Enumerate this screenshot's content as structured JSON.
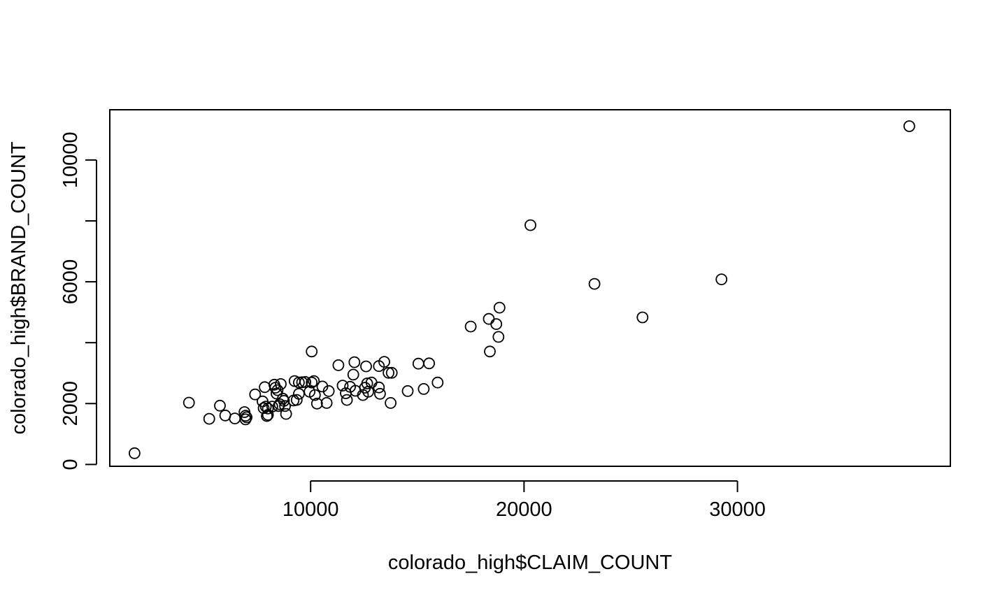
{
  "chart_data": {
    "type": "scatter",
    "title": "",
    "xlabel": "colorado_high$CLAIM_COUNT",
    "ylabel": "colorado_high$BRAND_COUNT",
    "xlim": [
      590,
      39975
    ],
    "ylim": [
      -60,
      11650
    ],
    "xticks": [
      10000,
      20000,
      30000
    ],
    "xtick_labels": [
      "10000",
      "20000",
      "30000"
    ],
    "yticks": [
      0,
      2000,
      4000,
      6000,
      8000,
      10000
    ],
    "ytick_labels": [
      "0",
      "2000",
      "",
      "6000",
      "",
      "10000"
    ],
    "grid": false,
    "legend": "none",
    "marker": "open-circle",
    "color": "#000000",
    "points": [
      [
        1750,
        370
      ],
      [
        4300,
        2030
      ],
      [
        5250,
        1500
      ],
      [
        5750,
        1930
      ],
      [
        6000,
        1610
      ],
      [
        6450,
        1510
      ],
      [
        6900,
        1720
      ],
      [
        6950,
        1600
      ],
      [
        6950,
        1480
      ],
      [
        7000,
        1550
      ],
      [
        7400,
        2300
      ],
      [
        7750,
        2070
      ],
      [
        7800,
        1850
      ],
      [
        7850,
        2540
      ],
      [
        7900,
        1900
      ],
      [
        7950,
        1590
      ],
      [
        8000,
        1630
      ],
      [
        8000,
        1840
      ],
      [
        8200,
        1900
      ],
      [
        8300,
        2620
      ],
      [
        8350,
        2520
      ],
      [
        8400,
        2330
      ],
      [
        8450,
        2440
      ],
      [
        8500,
        1920
      ],
      [
        8550,
        1980
      ],
      [
        8600,
        2640
      ],
      [
        8700,
        2160
      ],
      [
        8750,
        2090
      ],
      [
        8800,
        1920
      ],
      [
        8850,
        1660
      ],
      [
        9200,
        2100
      ],
      [
        9250,
        2740
      ],
      [
        9350,
        2120
      ],
      [
        9450,
        2690
      ],
      [
        9450,
        2320
      ],
      [
        9600,
        2700
      ],
      [
        9750,
        2710
      ],
      [
        9950,
        2390
      ],
      [
        10050,
        2690
      ],
      [
        10050,
        3710
      ],
      [
        10150,
        2740
      ],
      [
        10200,
        2280
      ],
      [
        10300,
        2000
      ],
      [
        10550,
        2560
      ],
      [
        10750,
        2020
      ],
      [
        10850,
        2410
      ],
      [
        11300,
        3260
      ],
      [
        11500,
        2590
      ],
      [
        11650,
        2340
      ],
      [
        11700,
        2120
      ],
      [
        11850,
        2550
      ],
      [
        12000,
        2950
      ],
      [
        12050,
        3360
      ],
      [
        12100,
        2420
      ],
      [
        12450,
        2280
      ],
      [
        12550,
        2520
      ],
      [
        12600,
        3220
      ],
      [
        12650,
        2660
      ],
      [
        12700,
        2390
      ],
      [
        12850,
        2690
      ],
      [
        13200,
        3230
      ],
      [
        13200,
        2530
      ],
      [
        13250,
        2320
      ],
      [
        13450,
        3370
      ],
      [
        13650,
        3010
      ],
      [
        13750,
        2020
      ],
      [
        13800,
        3010
      ],
      [
        14550,
        2410
      ],
      [
        15050,
        3310
      ],
      [
        15300,
        2480
      ],
      [
        15550,
        3320
      ],
      [
        15950,
        2690
      ],
      [
        17500,
        4530
      ],
      [
        18350,
        4780
      ],
      [
        18400,
        3710
      ],
      [
        18700,
        4610
      ],
      [
        18800,
        4190
      ],
      [
        18850,
        5150
      ],
      [
        20300,
        7860
      ],
      [
        23300,
        5930
      ],
      [
        25550,
        4830
      ],
      [
        29250,
        6080
      ],
      [
        38050,
        11110
      ]
    ]
  }
}
